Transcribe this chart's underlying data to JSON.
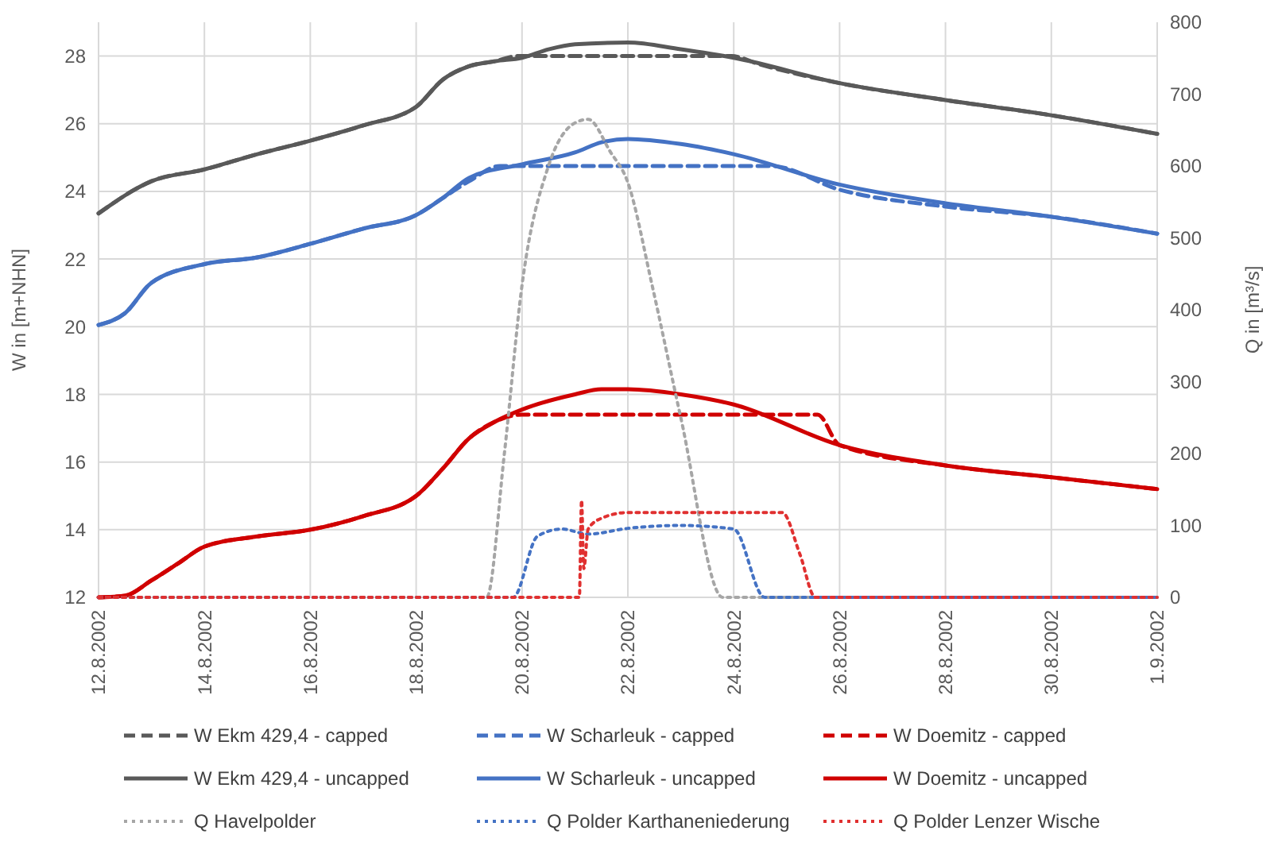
{
  "chart_data": {
    "type": "line",
    "ylabel": "W in [m+NHN]",
    "y2label": "Q in [m³/s]",
    "xlim": [
      "2002-08-12",
      "2002-09-01"
    ],
    "xticks": [
      {
        "value": "2002-08-12",
        "label": "12.8.2002"
      },
      {
        "value": "2002-08-14",
        "label": "14.8.2002"
      },
      {
        "value": "2002-08-16",
        "label": "16.8.2002"
      },
      {
        "value": "2002-08-18",
        "label": "18.8.2002"
      },
      {
        "value": "2002-08-20",
        "label": "20.8.2002"
      },
      {
        "value": "2002-08-22",
        "label": "22.8.2002"
      },
      {
        "value": "2002-08-24",
        "label": "24.8.2002"
      },
      {
        "value": "2002-08-26",
        "label": "26.8.2002"
      },
      {
        "value": "2002-08-28",
        "label": "28.8.2002"
      },
      {
        "value": "2002-08-30",
        "label": "30.8.2002"
      },
      {
        "value": "2002-09-01",
        "label": "1.9.2002"
      }
    ],
    "ylim": [
      12,
      29
    ],
    "yticks": [
      12,
      14,
      16,
      18,
      20,
      22,
      24,
      26,
      28
    ],
    "y2lim": [
      0,
      800
    ],
    "y2ticks": [
      0,
      100,
      200,
      300,
      400,
      500,
      600,
      700,
      800
    ],
    "grid": true,
    "legend": "bottom",
    "series": [
      {
        "name": "W Ekm 429,4 - capped",
        "color": "#595959",
        "line_style": "dashed",
        "x": [
          "2002-08-12",
          "2002-08-13",
          "2002-08-14",
          "2002-08-15",
          "2002-08-16",
          "2002-08-17",
          "2002-08-18",
          "2002-08-18T12:00",
          "2002-08-19",
          "2002-08-19T12:00",
          "2002-08-19T22:00",
          "2002-08-23T23:00",
          "2002-08-24T12:00",
          "2002-08-26",
          "2002-08-28",
          "2002-08-30",
          "2002-09-01"
        ],
        "values": [
          23.35,
          24.3,
          24.65,
          25.1,
          25.5,
          25.95,
          26.5,
          27.3,
          27.7,
          27.85,
          28.0,
          28.0,
          27.75,
          27.2,
          26.7,
          26.25,
          25.7
        ]
      },
      {
        "name": "W Scharleuk - capped",
        "color": "#4472c4",
        "line_style": "dashed",
        "x": [
          "2002-08-12",
          "2002-08-12T12:00",
          "2002-08-13",
          "2002-08-14",
          "2002-08-15",
          "2002-08-16",
          "2002-08-17",
          "2002-08-18",
          "2002-08-18T12:00",
          "2002-08-19",
          "2002-08-19T14:00",
          "2002-08-24T17:00",
          "2002-08-26",
          "2002-08-28",
          "2002-08-30",
          "2002-09-01"
        ],
        "values": [
          20.05,
          20.4,
          21.3,
          21.85,
          22.05,
          22.45,
          22.9,
          23.3,
          23.8,
          24.3,
          24.75,
          24.75,
          24.05,
          23.55,
          23.25,
          22.75
        ]
      },
      {
        "name": "W Doemitz - capped",
        "color": "#d00000",
        "line_style": "dashed",
        "x": [
          "2002-08-12",
          "2002-08-12T12:00",
          "2002-08-13",
          "2002-08-13T12:00",
          "2002-08-14",
          "2002-08-15",
          "2002-08-16",
          "2002-08-17",
          "2002-08-18",
          "2002-08-18T12:00",
          "2002-08-19",
          "2002-08-19T12:00",
          "2002-08-20",
          "2002-08-20T12:00",
          "2002-08-25T14:00",
          "2002-08-26",
          "2002-08-28",
          "2002-08-30",
          "2002-09-01"
        ],
        "values": [
          12.0,
          12.05,
          12.5,
          13.0,
          13.5,
          13.8,
          14.0,
          14.4,
          15.0,
          15.8,
          16.7,
          17.2,
          17.4,
          17.4,
          17.4,
          16.5,
          15.9,
          15.55,
          15.2
        ]
      },
      {
        "name": "W Ekm 429,4 - uncapped",
        "color": "#595959",
        "line_style": "solid",
        "x": [
          "2002-08-12",
          "2002-08-13",
          "2002-08-14",
          "2002-08-15",
          "2002-08-16",
          "2002-08-17",
          "2002-08-18",
          "2002-08-18T12:00",
          "2002-08-19",
          "2002-08-19T12:00",
          "2002-08-20",
          "2002-08-20T12:00",
          "2002-08-21",
          "2002-08-22",
          "2002-08-23",
          "2002-08-24",
          "2002-08-26",
          "2002-08-28",
          "2002-08-30",
          "2002-09-01"
        ],
        "values": [
          23.35,
          24.3,
          24.65,
          25.1,
          25.5,
          25.95,
          26.5,
          27.3,
          27.7,
          27.85,
          27.95,
          28.2,
          28.35,
          28.4,
          28.2,
          27.95,
          27.2,
          26.7,
          26.25,
          25.7
        ]
      },
      {
        "name": "W Scharleuk - uncapped",
        "color": "#4472c4",
        "line_style": "solid",
        "x": [
          "2002-08-12",
          "2002-08-12T12:00",
          "2002-08-13",
          "2002-08-14",
          "2002-08-15",
          "2002-08-16",
          "2002-08-17",
          "2002-08-18",
          "2002-08-18T12:00",
          "2002-08-19",
          "2002-08-20",
          "2002-08-21",
          "2002-08-21T12:00",
          "2002-08-22",
          "2002-08-23",
          "2002-08-24",
          "2002-08-26",
          "2002-08-28",
          "2002-08-30",
          "2002-09-01"
        ],
        "values": [
          20.05,
          20.4,
          21.3,
          21.85,
          22.05,
          22.45,
          22.9,
          23.3,
          23.8,
          24.4,
          24.8,
          25.15,
          25.45,
          25.55,
          25.4,
          25.1,
          24.2,
          23.65,
          23.25,
          22.75
        ]
      },
      {
        "name": "W Doemitz - uncapped",
        "color": "#d00000",
        "line_style": "solid",
        "x": [
          "2002-08-12",
          "2002-08-12T12:00",
          "2002-08-13",
          "2002-08-13T12:00",
          "2002-08-14",
          "2002-08-15",
          "2002-08-16",
          "2002-08-17",
          "2002-08-18",
          "2002-08-18T12:00",
          "2002-08-19",
          "2002-08-19T12:00",
          "2002-08-20",
          "2002-08-21",
          "2002-08-21T12:00",
          "2002-08-22",
          "2002-08-23",
          "2002-08-24",
          "2002-08-26",
          "2002-08-28",
          "2002-08-30",
          "2002-09-01"
        ],
        "values": [
          12.0,
          12.05,
          12.5,
          13.0,
          13.5,
          13.8,
          14.0,
          14.4,
          15.0,
          15.8,
          16.7,
          17.2,
          17.55,
          18.0,
          18.15,
          18.15,
          18.0,
          17.7,
          16.5,
          15.9,
          15.55,
          15.2
        ]
      },
      {
        "name": "Q Havelpolder",
        "color": "#a6a6a6",
        "line_style": "dotted",
        "axis": "y2",
        "x": [
          "2002-08-12",
          "2002-08-19T08:00",
          "2002-08-19T16:00",
          "2002-08-20",
          "2002-08-20T12:00",
          "2002-08-21",
          "2002-08-21T06:00",
          "2002-08-21T16:00",
          "2002-08-22",
          "2002-08-22T11:00",
          "2002-08-23",
          "2002-08-23T19:00",
          "2002-09-01"
        ],
        "values": [
          0,
          0,
          200,
          434,
          600,
          660,
          665,
          620,
          577,
          434,
          250,
          0,
          0
        ]
      },
      {
        "name": "Q Polder Karthaneniederung",
        "color": "#4472c4",
        "line_style": "dotted",
        "axis": "y2",
        "x": [
          "2002-08-12",
          "2002-08-19T20:00",
          "2002-08-20T07:00",
          "2002-08-20T18:00",
          "2002-08-21T06:00",
          "2002-08-22",
          "2002-08-23",
          "2002-08-24",
          "2002-08-24T14:00",
          "2002-09-01"
        ],
        "values": [
          0,
          0,
          85,
          95,
          88,
          96,
          100,
          95,
          0,
          0
        ]
      },
      {
        "name": "Q Polder Lenzer  Wische",
        "color": "#e03030",
        "line_style": "dotted",
        "axis": "y2",
        "x": [
          "2002-08-12",
          "2002-08-21T02:00",
          "2002-08-21T03:00",
          "2002-08-21T04:00",
          "2002-08-21T06:00",
          "2002-08-21T12:00",
          "2002-08-22",
          "2002-08-24T22:00",
          "2002-08-25T06:00",
          "2002-08-25T13:00",
          "2002-09-01"
        ],
        "values": [
          0,
          0,
          135,
          40,
          95,
          110,
          118,
          118,
          60,
          0,
          0
        ]
      }
    ]
  }
}
